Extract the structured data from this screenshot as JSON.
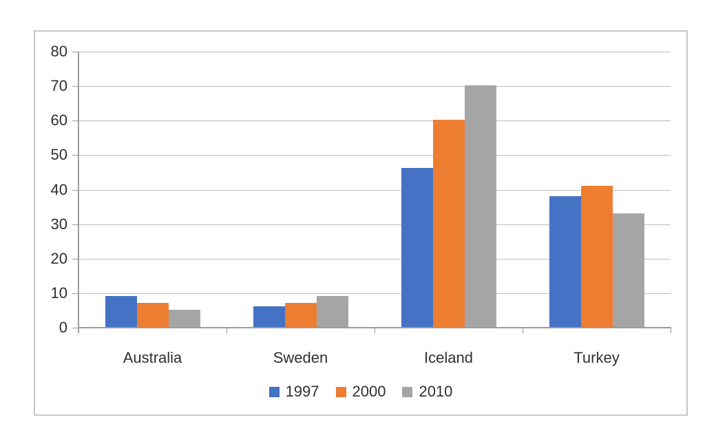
{
  "chart_data": {
    "type": "bar",
    "categories": [
      "Australia",
      "Sweden",
      "Iceland",
      "Turkey"
    ],
    "series": [
      {
        "name": "1997",
        "color": "#4472C4",
        "values": [
          9,
          6,
          46,
          38
        ]
      },
      {
        "name": "2000",
        "color": "#ED7D31",
        "values": [
          7,
          7,
          60,
          41
        ]
      },
      {
        "name": "2010",
        "color": "#A5A5A5",
        "values": [
          5,
          9,
          70,
          33
        ]
      }
    ],
    "title": "",
    "xlabel": "",
    "ylabel": "",
    "ylim": [
      0,
      80
    ],
    "yticks": [
      0,
      10,
      20,
      30,
      40,
      50,
      60,
      70,
      80
    ],
    "grid": true,
    "legend_position": "bottom",
    "colors": {
      "gridline": "#bdbdbd",
      "axis": "#9b9b9b",
      "frame_border": "#c3c6c8",
      "text": "#2f2f2f",
      "background": "#ffffff"
    }
  }
}
